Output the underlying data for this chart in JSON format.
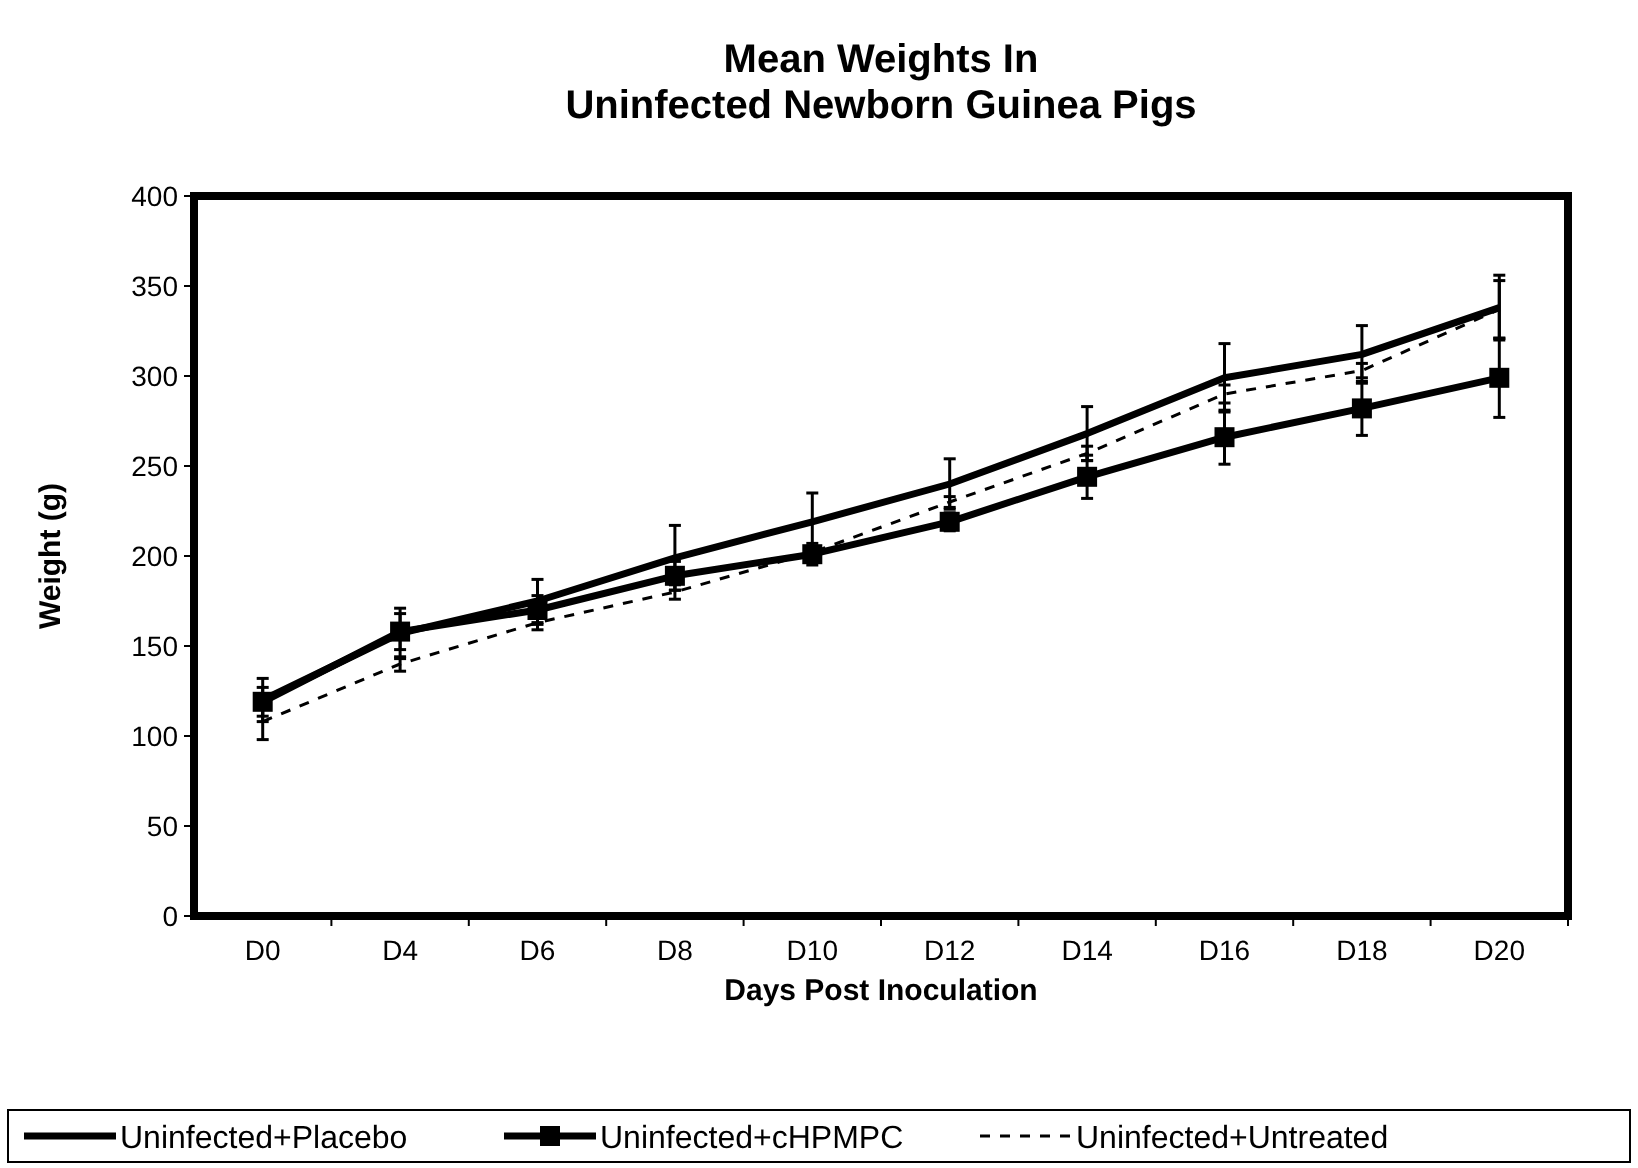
{
  "chart_data": {
    "type": "line",
    "title": "Mean Weights In\nUninfected Newborn Guinea Pigs",
    "xlabel": "Days Post Inoculation",
    "ylabel": "Weight (g)",
    "categories": [
      "D0",
      "D4",
      "D6",
      "D8",
      "D10",
      "D12",
      "D14",
      "D16",
      "D18",
      "D20"
    ],
    "ylim": [
      0,
      400
    ],
    "yticks": [
      0,
      50,
      100,
      150,
      200,
      250,
      300,
      350,
      400
    ],
    "grid": false,
    "legend": "bottom",
    "series": [
      {
        "name": "Uninfected+Placebo",
        "color": "#000000",
        "marker": "none",
        "line_style": "solid",
        "values": [
          120,
          157,
          175,
          199,
          219,
          240,
          268,
          299,
          312,
          338
        ],
        "errors": [
          12,
          14,
          12,
          18,
          16,
          14,
          15,
          19,
          16,
          18
        ]
      },
      {
        "name": "Uninfected+cHPMPC",
        "color": "#000000",
        "marker": "square",
        "line_style": "solid",
        "values": [
          119,
          158,
          170,
          189,
          201,
          219,
          244,
          266,
          282,
          299
        ],
        "errors": [
          8,
          10,
          8,
          8,
          6,
          5,
          12,
          15,
          15,
          22
        ]
      },
      {
        "name": "Uninfected+Untreated",
        "color": "#000000",
        "marker": "none",
        "line_style": "dashed",
        "values": [
          108,
          140,
          163,
          180,
          202,
          230,
          257,
          290,
          303,
          337
        ],
        "errors": [
          10,
          4,
          4,
          4,
          3,
          3,
          4,
          5,
          4,
          16
        ]
      }
    ]
  }
}
